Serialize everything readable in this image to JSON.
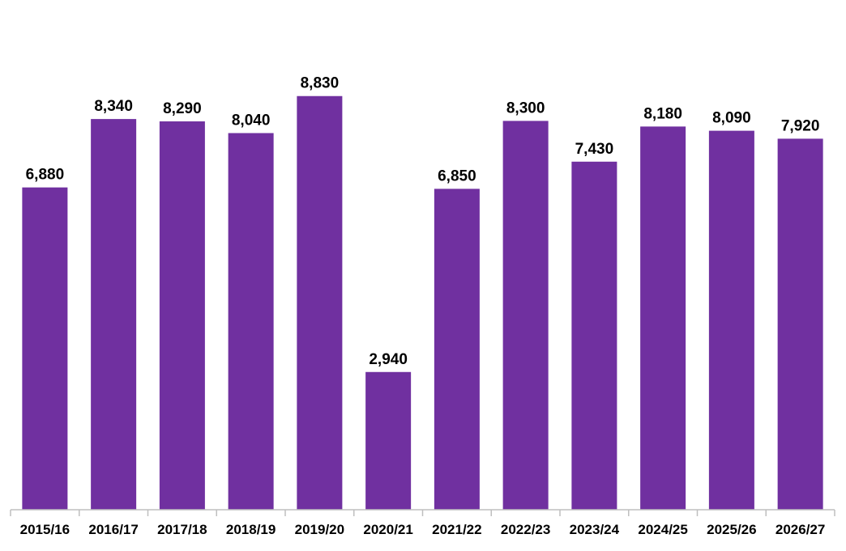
{
  "chart_data": {
    "type": "bar",
    "categories": [
      "2015/16",
      "2016/17",
      "2017/18",
      "2018/19",
      "2019/20",
      "2020/21",
      "2021/22",
      "2022/23",
      "2023/24",
      "2024/25",
      "2025/26",
      "2026/27"
    ],
    "values": [
      6880,
      8340,
      8290,
      8040,
      8830,
      2940,
      6850,
      8300,
      7430,
      8180,
      8090,
      7920
    ],
    "data_labels": [
      "6,880",
      "8,340",
      "8,290",
      "8,040",
      "8,830",
      "2,940",
      "6,850",
      "8,300",
      "7,430",
      "8,180",
      "8,090",
      "7,920"
    ],
    "title": "",
    "xlabel": "",
    "ylabel": "",
    "ylim": [
      0,
      9000
    ],
    "grid": false,
    "legend": "none",
    "bar_color": "#7030A0"
  }
}
